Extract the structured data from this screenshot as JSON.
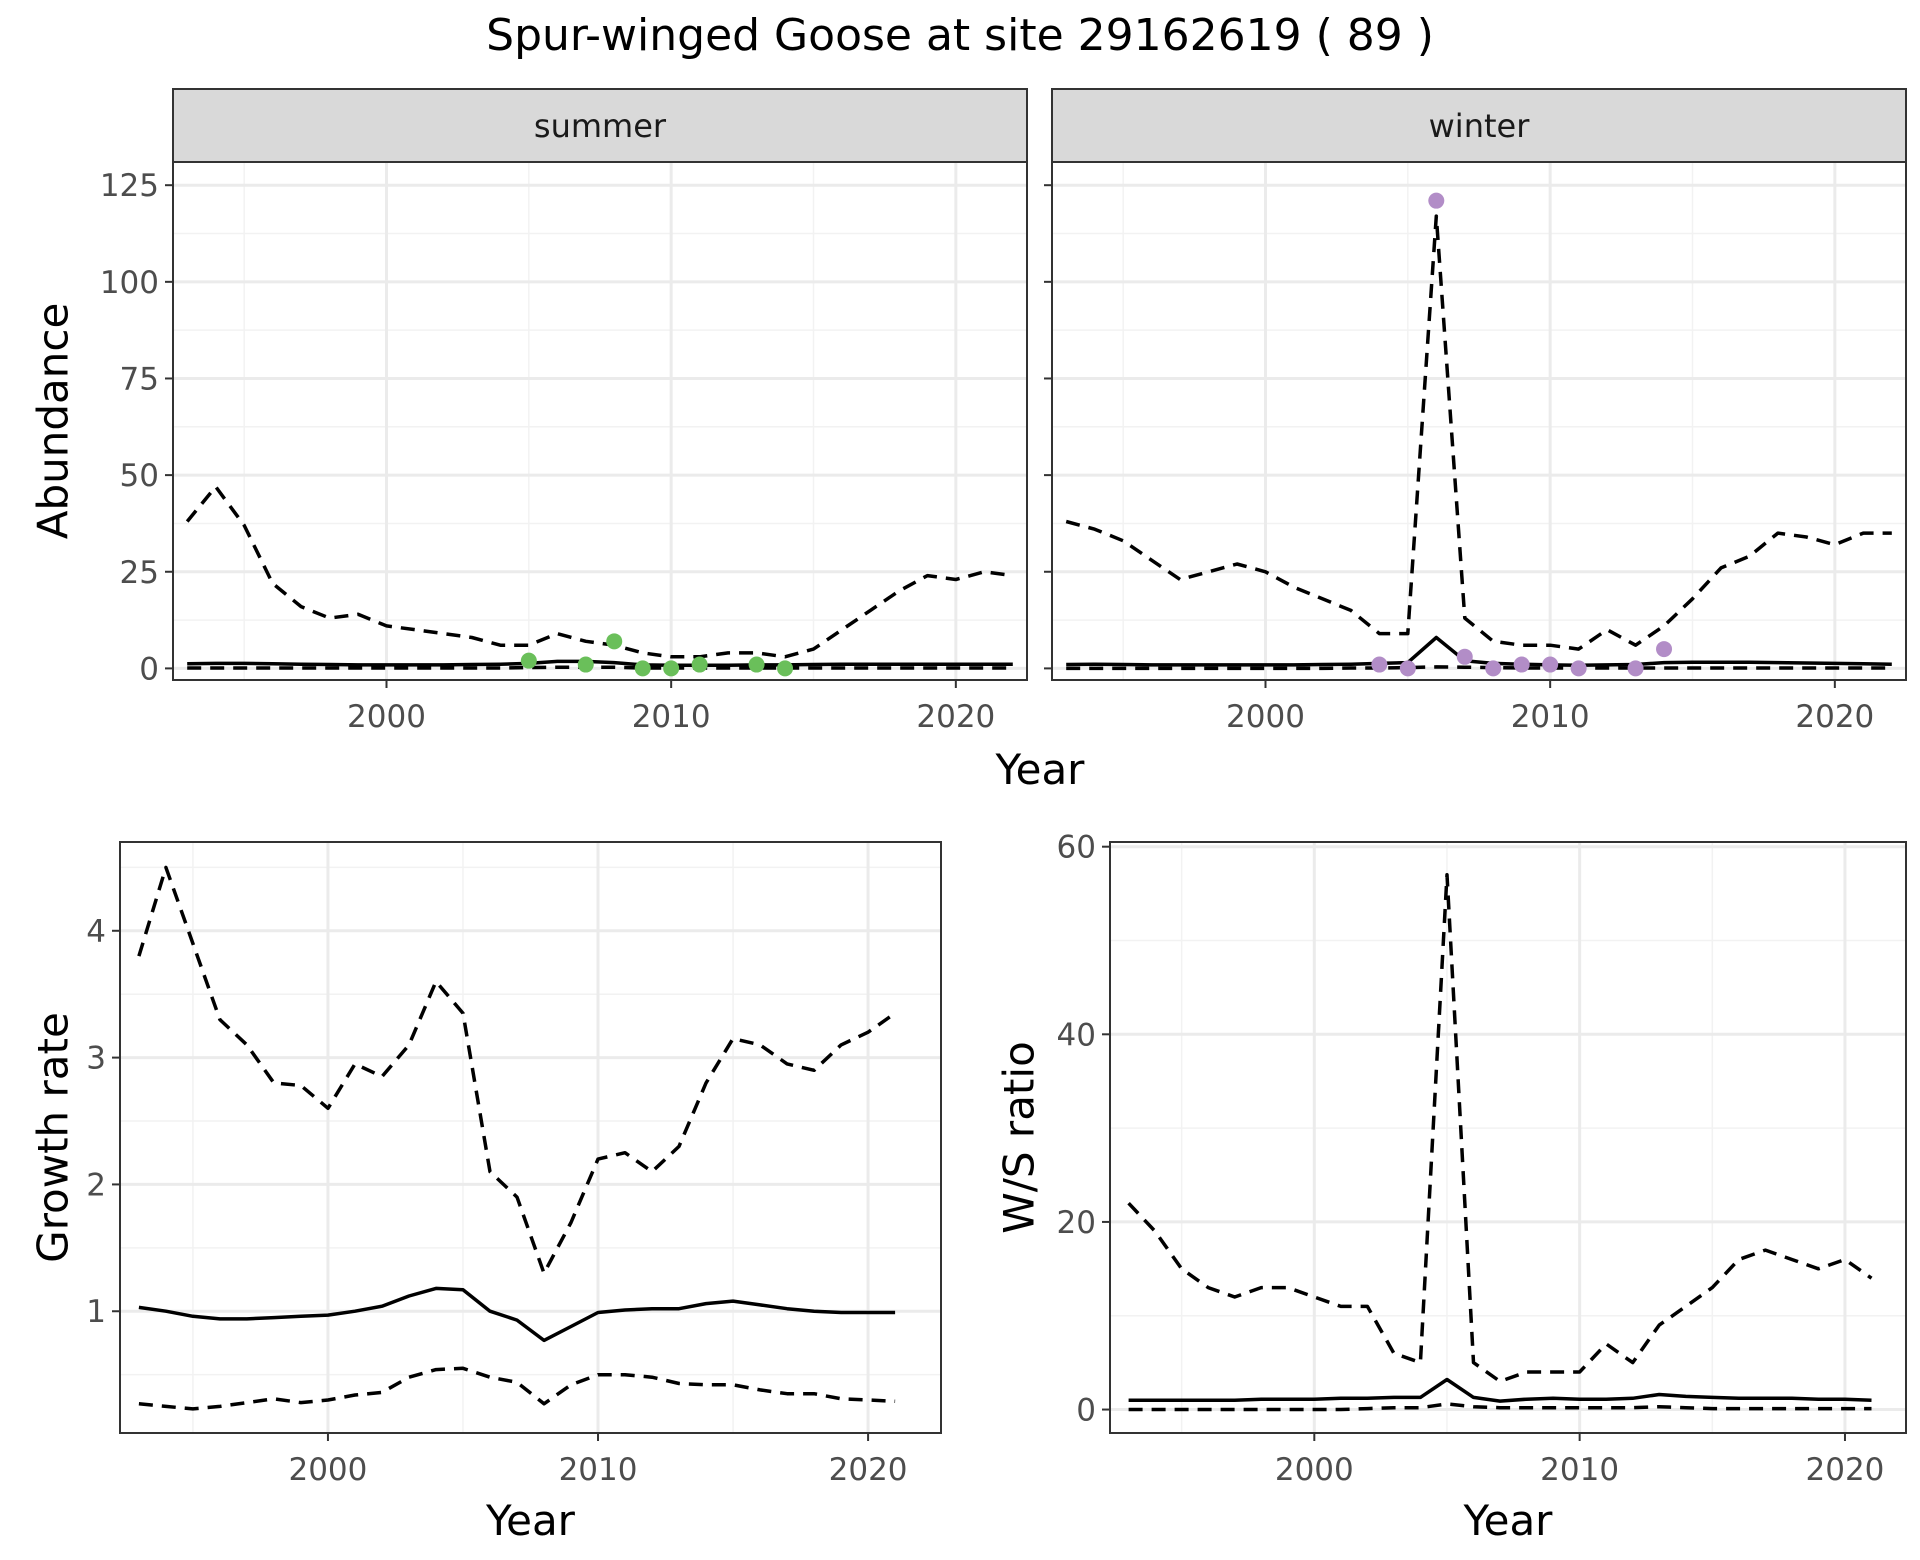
{
  "title": "Spur-winged Goose at site 29162619 ( 89 )",
  "colors": {
    "summer_points": "#6abf5a",
    "winter_points": "#b28dc7",
    "lines": "#000000",
    "grid": "#ebebeb",
    "strip": "#d9d9d9"
  },
  "chart_data": [
    {
      "type": "line",
      "panel": "abundance-summer",
      "strip_label": "summer",
      "ylabel": "Abundance",
      "xlabel": "Year",
      "xlim": [
        1992.5,
        2022.5
      ],
      "ylim": [
        -3,
        131
      ],
      "xticks": [
        2000,
        2010,
        2020
      ],
      "xtick_labels": [
        "2000",
        "2010",
        "2020"
      ],
      "yticks": [
        0,
        25,
        50,
        75,
        100,
        125
      ],
      "ytick_labels": [
        "0",
        "25",
        "50",
        "75",
        "100",
        "125"
      ],
      "grid": true,
      "series": [
        {
          "style": "solid",
          "x": [
            1993,
            1994,
            1995,
            1996,
            1997,
            1998,
            1999,
            2000,
            2001,
            2002,
            2003,
            2004,
            2005,
            2006,
            2007,
            2008,
            2009,
            2010,
            2011,
            2012,
            2013,
            2014,
            2015,
            2016,
            2017,
            2018,
            2019,
            2020,
            2021,
            2022
          ],
          "values": [
            1.2,
            1.3,
            1.3,
            1.2,
            1.1,
            1.0,
            0.9,
            0.9,
            0.9,
            0.9,
            1.0,
            1.1,
            1.3,
            1.8,
            1.8,
            1.5,
            0.9,
            0.8,
            0.8,
            0.8,
            0.9,
            0.9,
            1.0,
            1.1,
            1.1,
            1.1,
            1.1,
            1.1,
            1.1,
            1.1
          ]
        },
        {
          "style": "dashed",
          "x": [
            1993,
            1994,
            1995,
            1996,
            1997,
            1998,
            1999,
            2000,
            2001,
            2002,
            2003,
            2004,
            2005,
            2006,
            2007,
            2008,
            2009,
            2010,
            2011,
            2012,
            2013,
            2014,
            2015,
            2016,
            2017,
            2018,
            2019,
            2020,
            2021,
            2022
          ],
          "values": [
            38,
            47,
            37,
            22,
            16,
            13,
            14,
            11,
            10,
            9,
            8,
            6,
            6,
            9,
            7,
            6,
            4,
            3,
            3,
            4,
            4,
            3,
            5,
            10,
            15,
            20,
            24,
            23,
            25,
            24
          ]
        },
        {
          "style": "dashed",
          "x": [
            1993,
            1994,
            1995,
            1996,
            1997,
            1998,
            1999,
            2000,
            2001,
            2002,
            2003,
            2004,
            2005,
            2006,
            2007,
            2008,
            2009,
            2010,
            2011,
            2012,
            2013,
            2014,
            2015,
            2016,
            2017,
            2018,
            2019,
            2020,
            2021,
            2022
          ],
          "values": [
            0.1,
            0.1,
            0.1,
            0.1,
            0.1,
            0.1,
            0.1,
            0.1,
            0.1,
            0.1,
            0.1,
            0.1,
            0.2,
            0.3,
            0.3,
            0.3,
            0.1,
            0.1,
            0.1,
            0.1,
            0.1,
            0.1,
            0.1,
            0.1,
            0.1,
            0.1,
            0.1,
            0.1,
            0.1,
            0.1
          ]
        }
      ],
      "points": {
        "x": [
          2005,
          2007,
          2008,
          2009,
          2010,
          2011,
          2013,
          2014
        ],
        "values": [
          2,
          1,
          7,
          0,
          0,
          1,
          1,
          0
        ]
      }
    },
    {
      "type": "line",
      "panel": "abundance-winter",
      "strip_label": "winter",
      "xlabel": "Year",
      "xlim": [
        1992.5,
        2022.5
      ],
      "ylim": [
        -3,
        131
      ],
      "xticks": [
        2000,
        2010,
        2020
      ],
      "xtick_labels": [
        "2000",
        "2010",
        "2020"
      ],
      "yticks": [
        0,
        25,
        50,
        75,
        100,
        125
      ],
      "grid": true,
      "series": [
        {
          "style": "solid",
          "x": [
            1993,
            1994,
            1995,
            1996,
            1997,
            1998,
            1999,
            2000,
            2001,
            2002,
            2003,
            2004,
            2005,
            2006,
            2007,
            2008,
            2009,
            2010,
            2011,
            2012,
            2013,
            2014,
            2015,
            2016,
            2017,
            2018,
            2019,
            2020,
            2021,
            2022
          ],
          "values": [
            1.0,
            1.1,
            1.0,
            0.9,
            0.9,
            0.9,
            0.9,
            0.9,
            0.9,
            1.0,
            1.1,
            1.3,
            1.5,
            8,
            2.0,
            1.3,
            1.1,
            0.9,
            0.8,
            0.9,
            1.0,
            1.5,
            1.6,
            1.6,
            1.6,
            1.5,
            1.4,
            1.3,
            1.2,
            1.1
          ]
        },
        {
          "style": "dashed",
          "x": [
            1993,
            1994,
            1995,
            1996,
            1997,
            1998,
            1999,
            2000,
            2001,
            2002,
            2003,
            2004,
            2005,
            2006,
            2007,
            2008,
            2009,
            2010,
            2011,
            2012,
            2013,
            2014,
            2015,
            2016,
            2017,
            2018,
            2019,
            2020,
            2021,
            2022
          ],
          "values": [
            38,
            36,
            33,
            28,
            23,
            25,
            27,
            25,
            21,
            18,
            15,
            9,
            9,
            117,
            13,
            7,
            6,
            6,
            5,
            10,
            6,
            11,
            18,
            26,
            29,
            35,
            34,
            32,
            35,
            35
          ]
        },
        {
          "style": "dashed",
          "x": [
            1993,
            1994,
            1995,
            1996,
            1997,
            1998,
            1999,
            2000,
            2001,
            2002,
            2003,
            2004,
            2005,
            2006,
            2007,
            2008,
            2009,
            2010,
            2011,
            2012,
            2013,
            2014,
            2015,
            2016,
            2017,
            2018,
            2019,
            2020,
            2021,
            2022
          ],
          "values": [
            0,
            0,
            0,
            0,
            0,
            0,
            0,
            0,
            0,
            0,
            0.1,
            0.1,
            0.2,
            0.4,
            0.3,
            0.2,
            0.1,
            0.1,
            0.1,
            0.1,
            0.1,
            0.1,
            0.1,
            0.1,
            0.1,
            0.1,
            0.1,
            0.1,
            0.1,
            0.1
          ]
        }
      ],
      "points": {
        "x": [
          2004,
          2005,
          2006,
          2007,
          2008,
          2009,
          2010,
          2011,
          2013,
          2014
        ],
        "values": [
          1,
          0,
          121,
          3,
          0,
          1,
          1,
          0,
          0,
          5
        ]
      }
    },
    {
      "type": "line",
      "panel": "growth-rate",
      "ylabel": "Growth rate",
      "xlabel": "Year",
      "xlim": [
        1992.3,
        2022.7
      ],
      "ylim": [
        0.04,
        4.7
      ],
      "xticks": [
        2000,
        2010,
        2020
      ],
      "xtick_labels": [
        "2000",
        "2010",
        "2020"
      ],
      "yticks": [
        1,
        2,
        3,
        4
      ],
      "ytick_labels": [
        "1",
        "2",
        "3",
        "4"
      ],
      "grid": true,
      "series": [
        {
          "style": "solid",
          "x": [
            1993,
            1994,
            1995,
            1996,
            1997,
            1998,
            1999,
            2000,
            2001,
            2002,
            2003,
            2004,
            2005,
            2006,
            2007,
            2008,
            2009,
            2010,
            2011,
            2012,
            2013,
            2014,
            2015,
            2016,
            2017,
            2018,
            2019,
            2020,
            2021
          ],
          "values": [
            1.03,
            1.0,
            0.96,
            0.94,
            0.94,
            0.95,
            0.96,
            0.97,
            1.0,
            1.04,
            1.12,
            1.18,
            1.17,
            1.0,
            0.93,
            0.77,
            0.88,
            0.99,
            1.01,
            1.02,
            1.02,
            1.06,
            1.08,
            1.05,
            1.02,
            1.0,
            0.99,
            0.99,
            0.99
          ]
        },
        {
          "style": "dashed",
          "x": [
            1993,
            1994,
            1995,
            1996,
            1997,
            1998,
            1999,
            2000,
            2001,
            2002,
            2003,
            2004,
            2005,
            2006,
            2007,
            2008,
            2009,
            2010,
            2011,
            2012,
            2013,
            2014,
            2015,
            2016,
            2017,
            2018,
            2019,
            2020,
            2021
          ],
          "values": [
            3.8,
            4.5,
            3.9,
            3.3,
            3.1,
            2.8,
            2.78,
            2.6,
            2.95,
            2.85,
            3.1,
            3.6,
            3.35,
            2.1,
            1.9,
            1.3,
            1.7,
            2.2,
            2.25,
            2.1,
            2.3,
            2.8,
            3.15,
            3.1,
            2.95,
            2.9,
            3.1,
            3.2,
            3.35
          ]
        },
        {
          "style": "dashed",
          "x": [
            1993,
            1994,
            1995,
            1996,
            1997,
            1998,
            1999,
            2000,
            2001,
            2002,
            2003,
            2004,
            2005,
            2006,
            2007,
            2008,
            2009,
            2010,
            2011,
            2012,
            2013,
            2014,
            2015,
            2016,
            2017,
            2018,
            2019,
            2020,
            2021
          ],
          "values": [
            0.27,
            0.25,
            0.23,
            0.25,
            0.28,
            0.31,
            0.28,
            0.3,
            0.34,
            0.36,
            0.48,
            0.54,
            0.55,
            0.48,
            0.44,
            0.27,
            0.42,
            0.5,
            0.5,
            0.48,
            0.43,
            0.42,
            0.42,
            0.38,
            0.35,
            0.35,
            0.31,
            0.3,
            0.29
          ]
        }
      ]
    },
    {
      "type": "line",
      "panel": "ws-ratio",
      "ylabel": "W/S ratio",
      "xlabel": "Year",
      "xlim": [
        1992.3,
        2022.3
      ],
      "ylim": [
        -2.5,
        60.5
      ],
      "xticks": [
        2000,
        2010,
        2020
      ],
      "xtick_labels": [
        "2000",
        "2010",
        "2020"
      ],
      "yticks": [
        0,
        20,
        40,
        60
      ],
      "ytick_labels": [
        "0",
        "20",
        "40",
        "60"
      ],
      "grid": true,
      "series": [
        {
          "style": "solid",
          "x": [
            1993,
            1994,
            1995,
            1996,
            1997,
            1998,
            1999,
            2000,
            2001,
            2002,
            2003,
            2004,
            2005,
            2006,
            2007,
            2008,
            2009,
            2010,
            2011,
            2012,
            2013,
            2014,
            2015,
            2016,
            2017,
            2018,
            2019,
            2020,
            2021
          ],
          "values": [
            1.0,
            1.0,
            1.0,
            1.0,
            1.0,
            1.1,
            1.1,
            1.1,
            1.2,
            1.2,
            1.3,
            1.3,
            3.2,
            1.3,
            0.9,
            1.1,
            1.2,
            1.1,
            1.1,
            1.2,
            1.6,
            1.4,
            1.3,
            1.2,
            1.2,
            1.2,
            1.1,
            1.1,
            1.0
          ]
        },
        {
          "style": "dashed",
          "x": [
            1993,
            1994,
            1995,
            1996,
            1997,
            1998,
            1999,
            2000,
            2001,
            2002,
            2003,
            2004,
            2005,
            2006,
            2007,
            2008,
            2009,
            2010,
            2011,
            2012,
            2013,
            2014,
            2015,
            2016,
            2017,
            2018,
            2019,
            2020,
            2021
          ],
          "values": [
            22,
            19,
            15,
            13,
            12,
            13,
            13,
            12,
            11,
            11,
            6,
            5,
            57,
            5,
            3,
            4,
            4,
            4,
            7,
            5,
            9,
            11,
            13,
            16,
            17,
            16,
            15,
            16,
            14
          ]
        },
        {
          "style": "dashed",
          "x": [
            1993,
            1994,
            1995,
            1996,
            1997,
            1998,
            1999,
            2000,
            2001,
            2002,
            2003,
            2004,
            2005,
            2006,
            2007,
            2008,
            2009,
            2010,
            2011,
            2012,
            2013,
            2014,
            2015,
            2016,
            2017,
            2018,
            2019,
            2020,
            2021
          ],
          "values": [
            0,
            0,
            0,
            0,
            0,
            0,
            0,
            0,
            0,
            0.1,
            0.2,
            0.2,
            0.6,
            0.3,
            0.2,
            0.2,
            0.2,
            0.2,
            0.2,
            0.2,
            0.3,
            0.2,
            0.1,
            0.1,
            0.1,
            0.1,
            0.1,
            0.1,
            0.1
          ]
        }
      ]
    }
  ]
}
